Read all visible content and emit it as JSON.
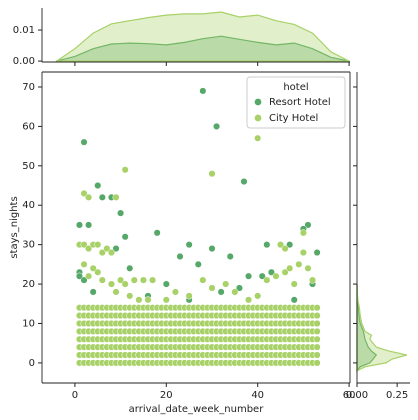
{
  "chart_data": [
    {
      "type": "scatter",
      "xlabel": "arrival_date_week_number",
      "ylabel": "stays_nights",
      "xlim": [
        -7.2,
        60.2
      ],
      "ylim": [
        -5.1,
        73.8
      ],
      "xticks": [
        0,
        20,
        40,
        60
      ],
      "yticks": [
        0,
        10,
        20,
        30,
        40,
        50,
        60,
        70
      ],
      "legend_title": "hotel",
      "legend": "upper right",
      "series": [
        {
          "name": "Resort Hotel",
          "color": "#55a868",
          "x": [
            1,
            2,
            3,
            5,
            6,
            8,
            10,
            11,
            18,
            28,
            31,
            37,
            51,
            50,
            25,
            45,
            42,
            1,
            1,
            2,
            9,
            12,
            15,
            23,
            27,
            30,
            34,
            38,
            41,
            43,
            47,
            53,
            20,
            16,
            32,
            36,
            48,
            4,
            25,
            52
          ],
          "y": [
            35,
            56,
            35,
            45,
            42,
            42,
            38,
            32,
            33,
            69,
            60,
            46,
            35,
            34,
            30,
            30,
            30,
            23,
            22,
            21,
            29,
            24,
            21,
            27,
            25,
            29,
            27,
            22,
            22,
            23,
            30,
            28,
            20,
            17,
            18,
            19,
            16,
            18,
            16,
            20
          ]
        },
        {
          "name": "City Hotel",
          "color": "#a8d168",
          "x": [
            1,
            2,
            3,
            4,
            5,
            6,
            7,
            8,
            9,
            10,
            11,
            12,
            13,
            14,
            15,
            16,
            17,
            18,
            19,
            20,
            21,
            22,
            23,
            24,
            25,
            26,
            27,
            28,
            29,
            30,
            31,
            32,
            33,
            34,
            35,
            36,
            37,
            38,
            39,
            40,
            41,
            42,
            43,
            44,
            45,
            46,
            47,
            48,
            49,
            50,
            51,
            52,
            53,
            1,
            2,
            3,
            4,
            5,
            6,
            7,
            8,
            9,
            10,
            11,
            12,
            13,
            14,
            15,
            16,
            17,
            18,
            19,
            20,
            21,
            22,
            23,
            24,
            25,
            26,
            27,
            28,
            29,
            30,
            31,
            32,
            33,
            34,
            35,
            36,
            37,
            38,
            39,
            40,
            41,
            42,
            43,
            44,
            45,
            46,
            47,
            48,
            49,
            50,
            51,
            52,
            53,
            1,
            2,
            3,
            4,
            5,
            6,
            7,
            8,
            9,
            10,
            11,
            12,
            13,
            14,
            15,
            16,
            17,
            18,
            19,
            20,
            21,
            22,
            23,
            24,
            25,
            26,
            27,
            28,
            29,
            30,
            31,
            32,
            33,
            34,
            35,
            36,
            37,
            38,
            39,
            40,
            41,
            42,
            43,
            44,
            45,
            46,
            47,
            48,
            49,
            50,
            51,
            52,
            53,
            1,
            2,
            3,
            4,
            5,
            6,
            7,
            8,
            9,
            10,
            11,
            12,
            13,
            14,
            15,
            16,
            17,
            18,
            19,
            20,
            21,
            22,
            23,
            24,
            25,
            26,
            27,
            28,
            29,
            30,
            31,
            32,
            33,
            34,
            35,
            36,
            37,
            38,
            39,
            40,
            41,
            42,
            43,
            44,
            45,
            46,
            47,
            48,
            49,
            50,
            51,
            52,
            53,
            1,
            2,
            3,
            4,
            5,
            6,
            7,
            8,
            9,
            10,
            11,
            12,
            13,
            14,
            15,
            16,
            17,
            18,
            19,
            20,
            21,
            22,
            23,
            24,
            25,
            26,
            27,
            28,
            29,
            30,
            31,
            32,
            33,
            34,
            35,
            36,
            37,
            38,
            39,
            40,
            41,
            42,
            43,
            44,
            45,
            46,
            47,
            48,
            49,
            50,
            51,
            52,
            53,
            1,
            2,
            3,
            4,
            5,
            6,
            7,
            8,
            9,
            10,
            11,
            12,
            13,
            14,
            15,
            16,
            17,
            18,
            19,
            20,
            21,
            22,
            23,
            24,
            25,
            26,
            27,
            28,
            29,
            30,
            31,
            32,
            33,
            34,
            35,
            36,
            37,
            38,
            39,
            40,
            41,
            42,
            43,
            44,
            45,
            46,
            47,
            48,
            49,
            50,
            51,
            52,
            53,
            1,
            2,
            3,
            4,
            5,
            6,
            7,
            8,
            9,
            10,
            11,
            12,
            13,
            14,
            15,
            16,
            17,
            18,
            19,
            20,
            21,
            22,
            23,
            24,
            25,
            26,
            27,
            28,
            29,
            30,
            31,
            32,
            33,
            34,
            35,
            36,
            37,
            38,
            39,
            40,
            41,
            42,
            43,
            44,
            45,
            46,
            47,
            48,
            49,
            50,
            51,
            52,
            53,
            1,
            2,
            3,
            4,
            5,
            6,
            7,
            8,
            9,
            10,
            11,
            12,
            13,
            14,
            15,
            16,
            17,
            18,
            19,
            20,
            21,
            22,
            23,
            24,
            25,
            26,
            27,
            28,
            29,
            30,
            31,
            32,
            33,
            34,
            35,
            36,
            37,
            38,
            39,
            40,
            41,
            42,
            43,
            44,
            45,
            46,
            47,
            48,
            49,
            50,
            51,
            52,
            53,
            1,
            2,
            3,
            4,
            5,
            6,
            7,
            8,
            2,
            4,
            5,
            3,
            6,
            8,
            10,
            11,
            13,
            15,
            17,
            9,
            12,
            14,
            16,
            20,
            22,
            25,
            28,
            30,
            33,
            35,
            38,
            40,
            42,
            44,
            46,
            47,
            48,
            49,
            50,
            51,
            52,
            45,
            46,
            2,
            3,
            9,
            11,
            30,
            40,
            50
          ],
          "y": [
            0,
            0,
            0,
            0,
            0,
            0,
            0,
            0,
            0,
            0,
            0,
            0,
            0,
            0,
            0,
            0,
            0,
            0,
            0,
            0,
            0,
            0,
            0,
            0,
            0,
            0,
            0,
            0,
            0,
            0,
            0,
            0,
            0,
            0,
            0,
            0,
            0,
            0,
            0,
            0,
            0,
            0,
            0,
            0,
            0,
            0,
            0,
            0,
            0,
            0,
            0,
            0,
            0,
            2,
            2,
            2,
            2,
            2,
            2,
            2,
            2,
            2,
            2,
            2,
            2,
            2,
            2,
            2,
            2,
            2,
            2,
            2,
            2,
            2,
            2,
            2,
            2,
            2,
            2,
            2,
            2,
            2,
            2,
            2,
            2,
            2,
            2,
            2,
            2,
            2,
            2,
            2,
            2,
            2,
            2,
            2,
            2,
            2,
            2,
            2,
            2,
            2,
            2,
            2,
            2,
            2,
            4,
            4,
            4,
            4,
            4,
            4,
            4,
            4,
            4,
            4,
            4,
            4,
            4,
            4,
            4,
            4,
            4,
            4,
            4,
            4,
            4,
            4,
            4,
            4,
            4,
            4,
            4,
            4,
            4,
            4,
            4,
            4,
            4,
            4,
            4,
            4,
            4,
            4,
            4,
            4,
            4,
            4,
            4,
            4,
            4,
            4,
            4,
            4,
            4,
            4,
            4,
            4,
            4,
            6,
            6,
            6,
            6,
            6,
            6,
            6,
            6,
            6,
            6,
            6,
            6,
            6,
            6,
            6,
            6,
            6,
            6,
            6,
            6,
            6,
            6,
            6,
            6,
            6,
            6,
            6,
            6,
            6,
            6,
            6,
            6,
            6,
            6,
            6,
            6,
            6,
            6,
            6,
            6,
            6,
            6,
            6,
            6,
            6,
            6,
            6,
            6,
            6,
            6,
            6,
            6,
            6,
            8,
            8,
            8,
            8,
            8,
            8,
            8,
            8,
            8,
            8,
            8,
            8,
            8,
            8,
            8,
            8,
            8,
            8,
            8,
            8,
            8,
            8,
            8,
            8,
            8,
            8,
            8,
            8,
            8,
            8,
            8,
            8,
            8,
            8,
            8,
            8,
            8,
            8,
            8,
            8,
            8,
            8,
            8,
            8,
            8,
            8,
            8,
            8,
            8,
            8,
            8,
            8,
            8,
            10,
            10,
            10,
            10,
            10,
            10,
            10,
            10,
            10,
            10,
            10,
            10,
            10,
            10,
            10,
            10,
            10,
            10,
            10,
            10,
            10,
            10,
            10,
            10,
            10,
            10,
            10,
            10,
            10,
            10,
            10,
            10,
            10,
            10,
            10,
            10,
            10,
            10,
            10,
            10,
            10,
            10,
            10,
            10,
            10,
            10,
            10,
            10,
            10,
            10,
            10,
            10,
            10,
            12,
            12,
            12,
            12,
            12,
            12,
            12,
            12,
            12,
            12,
            12,
            12,
            12,
            12,
            12,
            12,
            12,
            12,
            12,
            12,
            12,
            12,
            12,
            12,
            12,
            12,
            12,
            12,
            12,
            12,
            12,
            12,
            12,
            12,
            12,
            12,
            12,
            12,
            12,
            12,
            12,
            12,
            12,
            12,
            12,
            12,
            12,
            12,
            12,
            12,
            12,
            12,
            12,
            14,
            14,
            14,
            14,
            14,
            14,
            14,
            14,
            14,
            14,
            14,
            14,
            14,
            14,
            14,
            14,
            14,
            14,
            14,
            14,
            14,
            14,
            14,
            14,
            14,
            14,
            14,
            14,
            14,
            14,
            14,
            14,
            14,
            14,
            14,
            14,
            14,
            14,
            14,
            14,
            14,
            14,
            14,
            14,
            14,
            14,
            14,
            14,
            14,
            14,
            14,
            14,
            14,
            30,
            30,
            29,
            30,
            30,
            28,
            29,
            28,
            25,
            24,
            23,
            22,
            21,
            20,
            21,
            20,
            21,
            21,
            21,
            18,
            17,
            16,
            16,
            16,
            18,
            17,
            21,
            19,
            20,
            18,
            16,
            17,
            21,
            22,
            23,
            24,
            20,
            25,
            28,
            24,
            21,
            30,
            29,
            43,
            42,
            42,
            49,
            48,
            57,
            33
          ]
        }
      ]
    },
    {
      "type": "kde",
      "orientation": "vertical",
      "ylim": [
        -0.0003,
        0.0171
      ],
      "yticks": [
        {
          "value": 0,
          "label": "0.00"
        },
        0.01
      ],
      "grid_x": [
        -4,
        0,
        4,
        8,
        12,
        16,
        20,
        24,
        28,
        32,
        36,
        40,
        44,
        48,
        52,
        56,
        60
      ],
      "series": [
        {
          "name": "Resort Hotel",
          "color": "#55a868",
          "values": [
            0,
            0.0015,
            0.004,
            0.0055,
            0.0058,
            0.0056,
            0.0052,
            0.006,
            0.0072,
            0.008,
            0.007,
            0.006,
            0.0052,
            0.0058,
            0.004,
            0.0012,
            0
          ]
        },
        {
          "name": "City Hotel",
          "color": "#a8d168",
          "values": [
            0,
            0.004,
            0.009,
            0.012,
            0.013,
            0.014,
            0.0148,
            0.0152,
            0.0152,
            0.0158,
            0.0142,
            0.0148,
            0.013,
            0.0118,
            0.009,
            0.003,
            0
          ]
        }
      ]
    },
    {
      "type": "kde",
      "orientation": "horizontal",
      "xlim": [
        0,
        0.33
      ],
      "xticks": [
        {
          "value": 0,
          "label": "0.00"
        },
        0.25
      ],
      "grid_y": [
        -2,
        -1,
        0,
        1,
        2,
        3,
        4,
        5,
        6,
        7,
        8,
        9,
        10,
        12,
        14,
        16,
        20
      ],
      "series": [
        {
          "name": "Resort Hotel",
          "color": "#55a868",
          "values": [
            0,
            0.02,
            0.08,
            0.1,
            0.12,
            0.09,
            0.07,
            0.06,
            0.05,
            0.045,
            0.04,
            0.03,
            0.02,
            0.012,
            0.008,
            0.003,
            0
          ]
        },
        {
          "name": "City Hotel",
          "color": "#a8d168",
          "values": [
            0,
            0.05,
            0.18,
            0.22,
            0.31,
            0.2,
            0.12,
            0.1,
            0.08,
            0.09,
            0.05,
            0.04,
            0.03,
            0.02,
            0.015,
            0.005,
            0
          ]
        }
      ]
    }
  ]
}
